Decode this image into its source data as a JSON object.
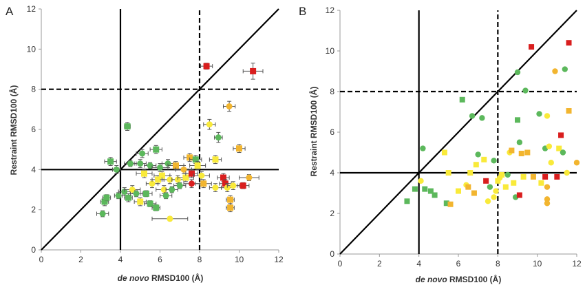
{
  "figure": {
    "panels": [
      {
        "letter": "A",
        "xlabel_italic": "de novo",
        "xlabel_rest": " RMSD100 (Å)",
        "ylabel": "Restraint RMSD100 (Å)"
      },
      {
        "letter": "B",
        "xlabel_italic": "de novo",
        "xlabel_rest": " RMSD100 (Å)",
        "ylabel": "Restraint RMSD100 (Å)"
      }
    ]
  },
  "colors": {
    "green": "#5cb85c",
    "yellow": "#f9ea3a",
    "orange": "#f2b52f",
    "red": "#d91e1e",
    "error_bar": "#555555",
    "reference_line": "#000000"
  },
  "chart_data": [
    {
      "type": "scatter",
      "panel": "A",
      "xlabel": "de novo RMSD100 (Å)",
      "ylabel": "Restraint RMSD100 (Å)",
      "xlim": [
        0,
        12
      ],
      "ylim": [
        0,
        12
      ],
      "xticks": [
        0,
        2,
        4,
        6,
        8,
        10,
        12
      ],
      "yticks": [
        0,
        2,
        4,
        6,
        8,
        10,
        12
      ],
      "reference_lines": {
        "diagonal": "y = x (solid)",
        "vertical": [
          {
            "x": 4,
            "style": "solid"
          },
          {
            "x": 8,
            "style": "dashed"
          }
        ],
        "horizontal": [
          {
            "y": 4,
            "style": "solid"
          },
          {
            "y": 8,
            "style": "dashed"
          }
        ]
      },
      "error_bars": true,
      "marker_shapes": [
        "square",
        "circle"
      ],
      "points": [
        {
          "x": 3.2,
          "y": 2.4,
          "c": "green",
          "m": "s",
          "xe": 0.2,
          "ye": 0.2
        },
        {
          "x": 3.3,
          "y": 2.6,
          "c": "green",
          "m": "s",
          "xe": 0.2,
          "ye": 0.15
        },
        {
          "x": 3.1,
          "y": 1.8,
          "c": "green",
          "m": "o",
          "xe": 0.3,
          "ye": 0.15
        },
        {
          "x": 3.5,
          "y": 4.4,
          "c": "green",
          "m": "s",
          "xe": 0.3,
          "ye": 0.2
        },
        {
          "x": 3.8,
          "y": 4.0,
          "c": "green",
          "m": "o",
          "xe": 0.2,
          "ye": 0.2
        },
        {
          "x": 3.9,
          "y": 2.7,
          "c": "green",
          "m": "o",
          "xe": 0.2,
          "ye": 0.15
        },
        {
          "x": 4.2,
          "y": 2.9,
          "c": "green",
          "m": "o",
          "xe": 0.3,
          "ye": 0.2
        },
        {
          "x": 4.35,
          "y": 6.15,
          "c": "green",
          "m": "s",
          "xe": 0.15,
          "ye": 0.2
        },
        {
          "x": 4.5,
          "y": 4.3,
          "c": "green",
          "m": "o",
          "xe": 0.3,
          "ye": 0.15
        },
        {
          "x": 4.4,
          "y": 2.6,
          "c": "green",
          "m": "s",
          "xe": 0.2,
          "ye": 0.2
        },
        {
          "x": 4.6,
          "y": 3.0,
          "c": "yellow",
          "m": "o",
          "xe": 0.4,
          "ye": 0.2
        },
        {
          "x": 4.8,
          "y": 2.8,
          "c": "green",
          "m": "o",
          "xe": 0.3,
          "ye": 0.15
        },
        {
          "x": 5.0,
          "y": 4.3,
          "c": "green",
          "m": "o",
          "xe": 0.3,
          "ye": 0.2
        },
        {
          "x": 5.1,
          "y": 4.8,
          "c": "green",
          "m": "o",
          "xe": 0.3,
          "ye": 0.2
        },
        {
          "x": 5.2,
          "y": 3.8,
          "c": "yellow",
          "m": "s",
          "xe": 0.4,
          "ye": 0.2
        },
        {
          "x": 5.0,
          "y": 2.4,
          "c": "yellow",
          "m": "s",
          "xe": 0.3,
          "ye": 0.2
        },
        {
          "x": 5.3,
          "y": 2.8,
          "c": "green",
          "m": "s",
          "xe": 0.3,
          "ye": 0.15
        },
        {
          "x": 5.5,
          "y": 4.2,
          "c": "green",
          "m": "o",
          "xe": 0.3,
          "ye": 0.15
        },
        {
          "x": 5.5,
          "y": 2.3,
          "c": "green",
          "m": "s",
          "xe": 0.3,
          "ye": 0.15
        },
        {
          "x": 5.6,
          "y": 3.3,
          "c": "yellow",
          "m": "o",
          "xe": 0.3,
          "ye": 0.2
        },
        {
          "x": 5.8,
          "y": 5.0,
          "c": "green",
          "m": "s",
          "xe": 0.3,
          "ye": 0.2
        },
        {
          "x": 5.9,
          "y": 3.5,
          "c": "yellow",
          "m": "s",
          "xe": 0.3,
          "ye": 0.2
        },
        {
          "x": 5.8,
          "y": 2.1,
          "c": "green",
          "m": "s",
          "xe": 0.2,
          "ye": 0.15
        },
        {
          "x": 6.0,
          "y": 4.1,
          "c": "green",
          "m": "o",
          "xe": 0.4,
          "ye": 0.2
        },
        {
          "x": 6.1,
          "y": 3.7,
          "c": "yellow",
          "m": "s",
          "xe": 0.4,
          "ye": 0.2
        },
        {
          "x": 6.2,
          "y": 3.0,
          "c": "yellow",
          "m": "o",
          "xe": 0.4,
          "ye": 0.2
        },
        {
          "x": 6.3,
          "y": 2.7,
          "c": "green",
          "m": "o",
          "xe": 0.3,
          "ye": 0.15
        },
        {
          "x": 6.4,
          "y": 4.3,
          "c": "green",
          "m": "o",
          "xe": 0.3,
          "ye": 0.2
        },
        {
          "x": 6.5,
          "y": 3.5,
          "c": "yellow",
          "m": "o",
          "xe": 0.4,
          "ye": 0.2
        },
        {
          "x": 6.6,
          "y": 3.0,
          "c": "green",
          "m": "o",
          "xe": 0.3,
          "ye": 0.15
        },
        {
          "x": 6.5,
          "y": 1.55,
          "c": "yellow",
          "m": "o",
          "xe": 0.9,
          "ye": 0.1
        },
        {
          "x": 6.8,
          "y": 4.2,
          "c": "orange",
          "m": "s",
          "xe": 0.4,
          "ye": 0.2
        },
        {
          "x": 6.9,
          "y": 3.5,
          "c": "yellow",
          "m": "o",
          "xe": 0.3,
          "ye": 0.2
        },
        {
          "x": 7.0,
          "y": 3.2,
          "c": "green",
          "m": "o",
          "xe": 0.3,
          "ye": 0.15
        },
        {
          "x": 7.2,
          "y": 4.0,
          "c": "orange",
          "m": "o",
          "xe": 0.4,
          "ye": 0.2
        },
        {
          "x": 7.3,
          "y": 3.6,
          "c": "yellow",
          "m": "s",
          "xe": 0.4,
          "ye": 0.2
        },
        {
          "x": 7.5,
          "y": 4.6,
          "c": "orange",
          "m": "s",
          "xe": 0.3,
          "ye": 0.2
        },
        {
          "x": 7.6,
          "y": 3.3,
          "c": "red",
          "m": "o",
          "xe": 0.4,
          "ye": 0.2
        },
        {
          "x": 7.6,
          "y": 3.8,
          "c": "red",
          "m": "s",
          "xe": 0.3,
          "ye": 0.2
        },
        {
          "x": 7.8,
          "y": 4.5,
          "c": "green",
          "m": "s",
          "xe": 0.3,
          "ye": 0.2
        },
        {
          "x": 7.9,
          "y": 4.2,
          "c": "yellow",
          "m": "s",
          "xe": 0.4,
          "ye": 0.2
        },
        {
          "x": 8.1,
          "y": 3.7,
          "c": "yellow",
          "m": "o",
          "xe": 0.4,
          "ye": 0.2
        },
        {
          "x": 8.2,
          "y": 3.3,
          "c": "orange",
          "m": "s",
          "xe": 0.4,
          "ye": 0.2
        },
        {
          "x": 8.35,
          "y": 9.15,
          "c": "red",
          "m": "s",
          "xe": 0.3,
          "ye": 0.15
        },
        {
          "x": 8.5,
          "y": 6.25,
          "c": "yellow",
          "m": "o",
          "xe": 0.3,
          "ye": 0.25
        },
        {
          "x": 8.8,
          "y": 4.5,
          "c": "yellow",
          "m": "s",
          "xe": 0.3,
          "ye": 0.2
        },
        {
          "x": 8.8,
          "y": 3.1,
          "c": "yellow",
          "m": "o",
          "xe": 0.3,
          "ye": 0.2
        },
        {
          "x": 8.95,
          "y": 5.6,
          "c": "green",
          "m": "o",
          "xe": 0.2,
          "ye": 0.25
        },
        {
          "x": 9.2,
          "y": 3.6,
          "c": "red",
          "m": "s",
          "xe": 0.3,
          "ye": 0.2
        },
        {
          "x": 9.3,
          "y": 3.3,
          "c": "red",
          "m": "s",
          "xe": 0.3,
          "ye": 0.2
        },
        {
          "x": 9.4,
          "y": 3.1,
          "c": "yellow",
          "m": "o",
          "xe": 0.3,
          "ye": 0.2
        },
        {
          "x": 9.5,
          "y": 7.15,
          "c": "orange",
          "m": "o",
          "xe": 0.3,
          "ye": 0.25
        },
        {
          "x": 9.55,
          "y": 2.5,
          "c": "orange",
          "m": "s",
          "xe": 0.2,
          "ye": 0.2
        },
        {
          "x": 9.55,
          "y": 2.1,
          "c": "orange",
          "m": "s",
          "xe": 0.2,
          "ye": 0.2
        },
        {
          "x": 9.7,
          "y": 3.2,
          "c": "yellow",
          "m": "o",
          "xe": 0.3,
          "ye": 0.2
        },
        {
          "x": 10.0,
          "y": 5.05,
          "c": "orange",
          "m": "s",
          "xe": 0.3,
          "ye": 0.2
        },
        {
          "x": 10.2,
          "y": 3.2,
          "c": "red",
          "m": "s",
          "xe": 0.3,
          "ye": 0.15
        },
        {
          "x": 10.5,
          "y": 3.6,
          "c": "orange",
          "m": "o",
          "xe": 0.5,
          "ye": 0.15
        },
        {
          "x": 10.7,
          "y": 8.9,
          "c": "red",
          "m": "s",
          "xe": 0.5,
          "ye": 0.4
        }
      ]
    },
    {
      "type": "scatter",
      "panel": "B",
      "xlabel": "de novo RMSD100 (Å)",
      "ylabel": "Restraint RMSD100 (Å)",
      "xlim": [
        0,
        12
      ],
      "ylim": [
        0,
        12
      ],
      "xticks": [
        0,
        2,
        4,
        6,
        8,
        10,
        12
      ],
      "yticks": [
        0,
        2,
        4,
        6,
        8,
        10,
        12
      ],
      "reference_lines": {
        "diagonal": "y = x (solid)",
        "vertical": [
          {
            "x": 4,
            "style": "solid"
          },
          {
            "x": 8,
            "style": "dashed"
          }
        ],
        "horizontal": [
          {
            "y": 4,
            "style": "solid"
          },
          {
            "y": 8,
            "style": "dashed"
          }
        ]
      },
      "error_bars": false,
      "marker_shapes": [
        "square",
        "circle"
      ],
      "points": [
        {
          "x": 3.4,
          "y": 2.6,
          "c": "green",
          "m": "s"
        },
        {
          "x": 3.8,
          "y": 3.2,
          "c": "green",
          "m": "s"
        },
        {
          "x": 4.2,
          "y": 5.2,
          "c": "green",
          "m": "o"
        },
        {
          "x": 4.3,
          "y": 3.2,
          "c": "green",
          "m": "s"
        },
        {
          "x": 4.1,
          "y": 3.6,
          "c": "yellow",
          "m": "o"
        },
        {
          "x": 4.6,
          "y": 3.1,
          "c": "green",
          "m": "s"
        },
        {
          "x": 4.8,
          "y": 2.9,
          "c": "green",
          "m": "s"
        },
        {
          "x": 5.3,
          "y": 5.0,
          "c": "yellow",
          "m": "s"
        },
        {
          "x": 5.4,
          "y": 2.5,
          "c": "green",
          "m": "s"
        },
        {
          "x": 5.5,
          "y": 4.0,
          "c": "yellow",
          "m": "s"
        },
        {
          "x": 5.6,
          "y": 2.45,
          "c": "orange",
          "m": "s"
        },
        {
          "x": 6.0,
          "y": 3.1,
          "c": "yellow",
          "m": "s"
        },
        {
          "x": 6.2,
          "y": 7.6,
          "c": "green",
          "m": "s"
        },
        {
          "x": 6.4,
          "y": 3.4,
          "c": "yellow",
          "m": "o"
        },
        {
          "x": 6.5,
          "y": 3.3,
          "c": "orange",
          "m": "s"
        },
        {
          "x": 6.6,
          "y": 4.0,
          "c": "yellow",
          "m": "s"
        },
        {
          "x": 6.7,
          "y": 6.8,
          "c": "green",
          "m": "o"
        },
        {
          "x": 6.8,
          "y": 3.0,
          "c": "orange",
          "m": "s"
        },
        {
          "x": 6.9,
          "y": 4.4,
          "c": "yellow",
          "m": "s"
        },
        {
          "x": 7.0,
          "y": 4.9,
          "c": "green",
          "m": "o"
        },
        {
          "x": 7.2,
          "y": 6.7,
          "c": "green",
          "m": "o"
        },
        {
          "x": 7.3,
          "y": 4.65,
          "c": "yellow",
          "m": "s"
        },
        {
          "x": 7.4,
          "y": 3.6,
          "c": "red",
          "m": "s"
        },
        {
          "x": 7.5,
          "y": 2.6,
          "c": "yellow",
          "m": "o"
        },
        {
          "x": 7.6,
          "y": 3.3,
          "c": "green",
          "m": "o"
        },
        {
          "x": 7.8,
          "y": 2.8,
          "c": "yellow",
          "m": "o"
        },
        {
          "x": 7.8,
          "y": 4.6,
          "c": "green",
          "m": "o"
        },
        {
          "x": 7.9,
          "y": 3.1,
          "c": "yellow",
          "m": "o"
        },
        {
          "x": 8.0,
          "y": 3.6,
          "c": "yellow",
          "m": "s"
        },
        {
          "x": 8.1,
          "y": 3.75,
          "c": "yellow",
          "m": "o"
        },
        {
          "x": 8.2,
          "y": 3.9,
          "c": "yellow",
          "m": "s"
        },
        {
          "x": 8.4,
          "y": 3.3,
          "c": "yellow",
          "m": "s"
        },
        {
          "x": 8.5,
          "y": 3.9,
          "c": "green",
          "m": "o"
        },
        {
          "x": 8.6,
          "y": 5.0,
          "c": "yellow",
          "m": "o"
        },
        {
          "x": 8.7,
          "y": 5.1,
          "c": "orange",
          "m": "s"
        },
        {
          "x": 8.8,
          "y": 3.5,
          "c": "yellow",
          "m": "s"
        },
        {
          "x": 8.9,
          "y": 2.8,
          "c": "green",
          "m": "o"
        },
        {
          "x": 9.0,
          "y": 8.95,
          "c": "green",
          "m": "o"
        },
        {
          "x": 9.0,
          "y": 6.6,
          "c": "green",
          "m": "s"
        },
        {
          "x": 9.1,
          "y": 5.5,
          "c": "green",
          "m": "o"
        },
        {
          "x": 9.1,
          "y": 2.9,
          "c": "red",
          "m": "s"
        },
        {
          "x": 9.2,
          "y": 4.95,
          "c": "orange",
          "m": "s"
        },
        {
          "x": 9.3,
          "y": 3.8,
          "c": "yellow",
          "m": "s"
        },
        {
          "x": 9.4,
          "y": 8.05,
          "c": "green",
          "m": "o"
        },
        {
          "x": 9.5,
          "y": 5.0,
          "c": "orange",
          "m": "s"
        },
        {
          "x": 9.7,
          "y": 10.2,
          "c": "red",
          "m": "s"
        },
        {
          "x": 9.8,
          "y": 3.8,
          "c": "orange",
          "m": "s"
        },
        {
          "x": 10.1,
          "y": 6.9,
          "c": "green",
          "m": "o"
        },
        {
          "x": 10.2,
          "y": 3.5,
          "c": "yellow",
          "m": "s"
        },
        {
          "x": 10.4,
          "y": 5.2,
          "c": "green",
          "m": "o"
        },
        {
          "x": 10.4,
          "y": 3.8,
          "c": "red",
          "m": "s"
        },
        {
          "x": 10.5,
          "y": 6.8,
          "c": "yellow",
          "m": "o"
        },
        {
          "x": 10.5,
          "y": 3.3,
          "c": "orange",
          "m": "o"
        },
        {
          "x": 10.5,
          "y": 2.7,
          "c": "orange",
          "m": "o"
        },
        {
          "x": 10.5,
          "y": 2.5,
          "c": "orange",
          "m": "o"
        },
        {
          "x": 10.6,
          "y": 5.3,
          "c": "yellow",
          "m": "o"
        },
        {
          "x": 10.7,
          "y": 4.5,
          "c": "yellow",
          "m": "o"
        },
        {
          "x": 10.9,
          "y": 9.0,
          "c": "orange",
          "m": "o"
        },
        {
          "x": 11.0,
          "y": 3.8,
          "c": "red",
          "m": "s"
        },
        {
          "x": 11.1,
          "y": 5.2,
          "c": "yellow",
          "m": "s"
        },
        {
          "x": 11.2,
          "y": 5.85,
          "c": "red",
          "m": "s"
        },
        {
          "x": 11.3,
          "y": 5.0,
          "c": "green",
          "m": "o"
        },
        {
          "x": 11.4,
          "y": 9.1,
          "c": "green",
          "m": "o"
        },
        {
          "x": 11.5,
          "y": 4.0,
          "c": "yellow",
          "m": "o"
        },
        {
          "x": 11.6,
          "y": 10.4,
          "c": "red",
          "m": "s"
        },
        {
          "x": 11.6,
          "y": 7.05,
          "c": "orange",
          "m": "s"
        },
        {
          "x": 12.0,
          "y": 4.5,
          "c": "orange",
          "m": "o"
        }
      ]
    }
  ]
}
